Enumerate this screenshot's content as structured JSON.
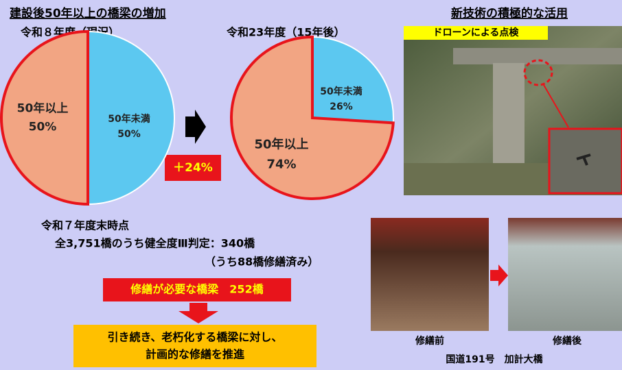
{
  "title": "建設後50年以上の橋梁の増加",
  "chart_data": [
    {
      "type": "pie",
      "title": "令和８年度（現況）",
      "categories": [
        "50年以上",
        "50年未満"
      ],
      "values": [
        50,
        50
      ],
      "value_labels": [
        "50%",
        "50%"
      ],
      "colors": [
        "#f2a583",
        "#5cc8f0"
      ]
    },
    {
      "type": "pie",
      "title": "令和23年度（15年後）",
      "categories": [
        "50年以上",
        "50年未満"
      ],
      "values": [
        74,
        26
      ],
      "value_labels": [
        "74%",
        "26%"
      ],
      "colors": [
        "#f2a583",
        "#5cc8f0"
      ]
    }
  ],
  "change_label": "＋24%",
  "status": [
    "令和７年度末時点",
    "全3,751橋のうち健全度Ⅲ判定：340橋",
    "（うち88橋修繕済み）"
  ],
  "repair_needed": "修繕が必要な橋梁　252橋",
  "policy": [
    "引き続き、老朽化する橋梁に対し、",
    "計画的な修繕を推進"
  ],
  "tech": {
    "title": "新技術の積極的な活用",
    "drone_label": "ドローンによる点検"
  },
  "repair_photos": {
    "before": "修繕前",
    "after": "修繕後",
    "caption": "国道191号　加計大橋"
  }
}
